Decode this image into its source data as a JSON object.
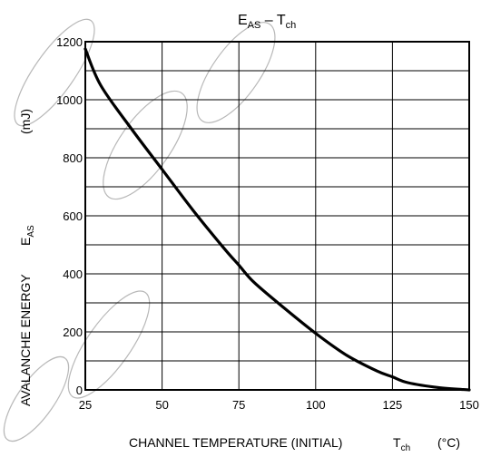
{
  "chart_data": {
    "type": "line",
    "title": {
      "main": "E",
      "main_sub": "AS",
      "sep": " – T",
      "tail_sub": "ch"
    },
    "xlabel": {
      "text": "CHANNEL TEMPERATURE (INITIAL)",
      "sym": "T",
      "sym_sub": "ch",
      "unit": "(°C)"
    },
    "ylabel": {
      "text": "AVALANCHE ENERGY",
      "sym": "E",
      "sym_sub": "AS",
      "unit": "(mJ)"
    },
    "xlim": [
      25,
      150
    ],
    "ylim": [
      0,
      1200
    ],
    "x_ticks": [
      25,
      50,
      75,
      100,
      125,
      150
    ],
    "y_ticks": [
      0,
      200,
      400,
      600,
      800,
      1000,
      1200
    ],
    "x_grid": [
      25,
      50,
      75,
      100,
      125,
      150
    ],
    "y_grid": [
      0,
      100,
      200,
      300,
      400,
      500,
      600,
      700,
      800,
      900,
      1000,
      1100,
      1200
    ],
    "grid": true,
    "series": [
      {
        "x": [
          25,
          30,
          40,
          50,
          60,
          70,
          75,
          80,
          90,
          100,
          110,
          120,
          125,
          130,
          140,
          150
        ],
        "y": [
          1175,
          1050,
          900,
          760,
          620,
          490,
          430,
          370,
          280,
          195,
          120,
          65,
          45,
          25,
          8,
          0
        ]
      }
    ]
  }
}
